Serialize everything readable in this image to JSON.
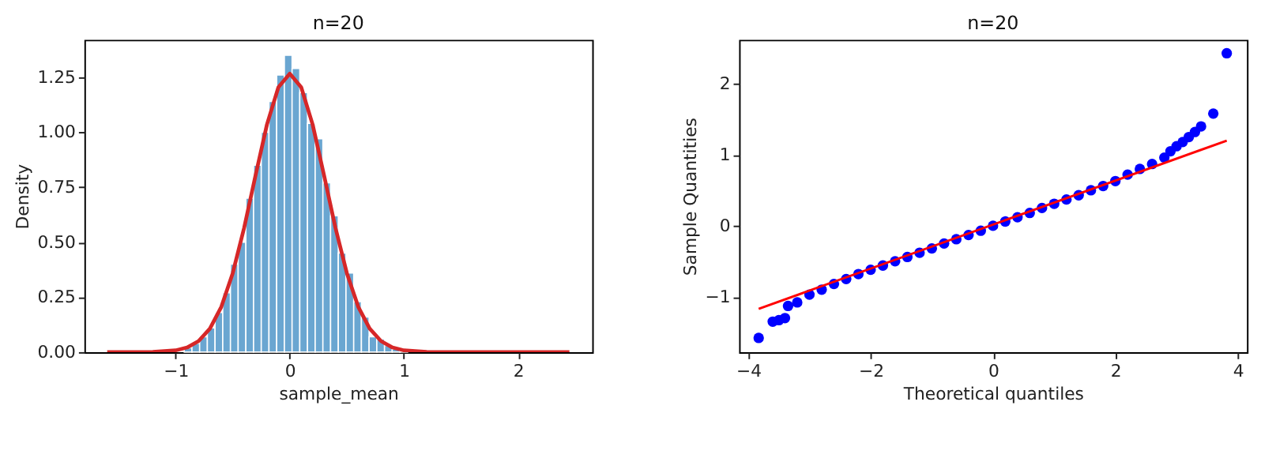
{
  "chart_data": [
    {
      "type": "histogram",
      "title": "n=20",
      "xlabel": "sample_mean",
      "ylabel": "Density",
      "color": "#6aa6d1",
      "bins": [
        -1.6,
        -1.5325,
        -1.465,
        -1.3975,
        -1.33,
        -1.2625,
        -1.195,
        -1.1275,
        -1.06,
        -0.9925,
        -0.925,
        -0.8575,
        -0.79,
        -0.7225,
        -0.655,
        -0.5875,
        -0.52,
        -0.4525,
        -0.385,
        -0.3175,
        -0.25,
        -0.1825,
        -0.115,
        -0.0475,
        0.02,
        0.0875,
        0.155,
        0.2225,
        0.29,
        0.3575,
        0.425,
        0.4925,
        0.56,
        0.6275,
        0.695,
        0.7625,
        0.83,
        0.8975,
        0.965,
        1.0325,
        1.1,
        1.1675,
        1.235,
        1.3025,
        1.37,
        1.4375,
        1.505,
        1.5725,
        1.64,
        1.7075,
        1.775,
        1.8425,
        1.91,
        1.9775,
        2.045,
        2.1125,
        2.18,
        2.2475,
        2.315,
        2.3825,
        2.45
      ],
      "values": [
        0,
        0,
        0,
        0,
        0,
        0,
        0,
        0,
        null,
        null,
        0.02,
        0.04,
        0.07,
        0.11,
        0.18,
        0.27,
        0.4,
        0.5,
        0.7,
        0.85,
        1.0,
        1.14,
        1.26,
        1.35,
        1.29,
        1.18,
        1.04,
        0.97,
        0.77,
        0.62,
        0.45,
        0.36,
        0.23,
        0.16,
        0.07,
        0.06,
        0.03,
        0.015,
        0.005,
        0,
        0,
        0,
        0,
        0,
        0,
        0,
        0,
        0,
        0,
        0,
        0,
        0,
        0,
        0,
        0,
        0,
        0,
        0,
        0,
        0
      ],
      "series": [
        {
          "type": "line",
          "color": "#d62728",
          "x": [
            -1.6,
            -1.2,
            -1.0,
            -0.9,
            -0.8,
            -0.7,
            -0.6,
            -0.5,
            -0.4,
            -0.3,
            -0.2,
            -0.1,
            0,
            0.1,
            0.2,
            0.3,
            0.4,
            0.5,
            0.6,
            0.7,
            0.8,
            0.9,
            1.0,
            1.2,
            1.6,
            2.45
          ],
          "values": [
            0,
            0.001,
            0.008,
            0.021,
            0.05,
            0.107,
            0.206,
            0.359,
            0.565,
            0.804,
            1.035,
            1.204,
            1.266,
            1.204,
            1.035,
            0.804,
            0.565,
            0.359,
            0.206,
            0.107,
            0.05,
            0.021,
            0.008,
            0.001,
            0,
            0
          ]
        }
      ],
      "xlim": [
        -1.8,
        2.65
      ],
      "xticks": [
        -1,
        0,
        1,
        2
      ],
      "ylim": [
        0,
        1.42
      ],
      "yticks": [
        {
          "value": 0,
          "label": "0.00"
        },
        0.25,
        {
          "value": 0.5,
          "label": "0.50"
        },
        0.75,
        {
          "value": 1,
          "label": "1.00"
        },
        1.25
      ],
      "grid": false
    },
    {
      "type": "scatter",
      "title": "n=20",
      "xlabel": "Theoretical quantiles",
      "ylabel": "Sample Quantities",
      "series": [
        {
          "type": "scatter",
          "color": "#0000ff",
          "x": [
            -3.83,
            -3.6,
            -3.5,
            -3.4,
            -3.35,
            -3.2,
            -3.0,
            -2.8,
            -2.6,
            -2.4,
            -2.2,
            -2.0,
            -1.8,
            -1.6,
            -1.4,
            -1.2,
            -1.0,
            -0.8,
            -0.6,
            -0.4,
            -0.2,
            0,
            0.2,
            0.4,
            0.6,
            0.8,
            1.0,
            1.2,
            1.4,
            1.6,
            1.8,
            2.0,
            2.2,
            2.4,
            2.6,
            2.8,
            2.9,
            3.0,
            3.1,
            3.2,
            3.3,
            3.4,
            3.6,
            3.82
          ],
          "values": [
            -1.58,
            -1.35,
            -1.33,
            -1.3,
            -1.13,
            -1.08,
            -0.97,
            -0.9,
            -0.82,
            -0.75,
            -0.68,
            -0.62,
            -0.56,
            -0.5,
            -0.44,
            -0.38,
            -0.32,
            -0.25,
            -0.19,
            -0.13,
            -0.07,
            0,
            0.06,
            0.12,
            0.18,
            0.25,
            0.31,
            0.37,
            0.43,
            0.5,
            0.56,
            0.63,
            0.72,
            0.8,
            0.87,
            0.96,
            1.05,
            1.12,
            1.18,
            1.25,
            1.32,
            1.4,
            1.58,
            2.43
          ]
        },
        {
          "type": "line",
          "color": "#ff0000",
          "x": [
            -3.83,
            3.82
          ],
          "values": [
            -1.17,
            1.2
          ]
        }
      ],
      "xlim": [
        -4.15,
        4.15
      ],
      "xticks": [
        -4,
        -2,
        0,
        2,
        4
      ],
      "ylim": [
        -1.78,
        2.62
      ],
      "yticks": [
        -1,
        0,
        1,
        2
      ],
      "grid": false
    }
  ]
}
